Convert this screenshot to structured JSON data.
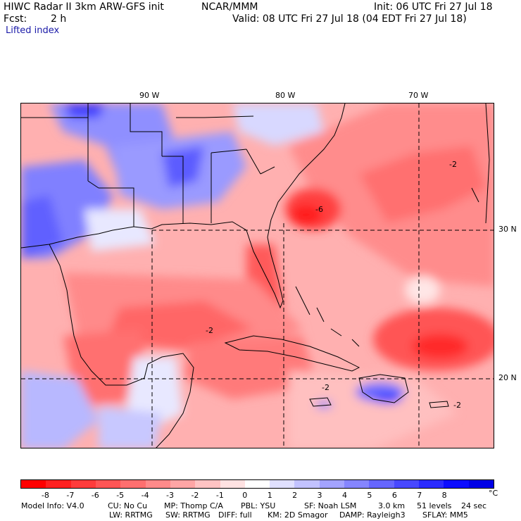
{
  "header": {
    "title_left": "HIWC Radar II 3km ARW-GFS init",
    "org": "NCAR/MMM",
    "init": "Init: 06 UTC Fri 27 Jul 18",
    "fcst_label": "Fcst:",
    "fcst_value": "2 h",
    "valid": "Valid: 08 UTC Fri 27 Jul 18 (04 EDT Fri 27 Jul 18)",
    "field": "Lifted index"
  },
  "map": {
    "lon_labels": [
      "90 W",
      "80 W",
      "70 W"
    ],
    "lat_labels": [
      "30 N",
      "20 N"
    ],
    "contour_labels": [
      "-6",
      "-2",
      "-2",
      "-2",
      "-2"
    ]
  },
  "colorbar": {
    "unit": "°C",
    "ticks": [
      "-8",
      "-7",
      "-6",
      "-5",
      "-4",
      "-3",
      "-2",
      "-1",
      "0",
      "1",
      "2",
      "3",
      "4",
      "5",
      "6",
      "7",
      "8"
    ],
    "colors": [
      "#ff0000",
      "#ff2020",
      "#ff3b3b",
      "#ff5555",
      "#ff6f6f",
      "#ff8a8a",
      "#ffa5a5",
      "#ffc3c3",
      "#ffe2e2",
      "#ffffff",
      "#e0e0ff",
      "#c2c2ff",
      "#a3a3ff",
      "#8585ff",
      "#6666ff",
      "#4848ff",
      "#2a2aff",
      "#0c0cff",
      "#0000e6"
    ]
  },
  "footer": {
    "line1": [
      "Model Info: V4.0",
      "CU: No Cu",
      "MP: Thomp C/A",
      "PBL: YSU",
      "SF: Noah LSM",
      "3.0 km",
      "51 levels",
      "24 sec"
    ],
    "line2": [
      "LW: RRTMG",
      "SW: RRTMG",
      "DIFF: full",
      "KM: 2D Smagor",
      "DAMP: Rayleigh3",
      "SFLAY: MM5"
    ]
  }
}
